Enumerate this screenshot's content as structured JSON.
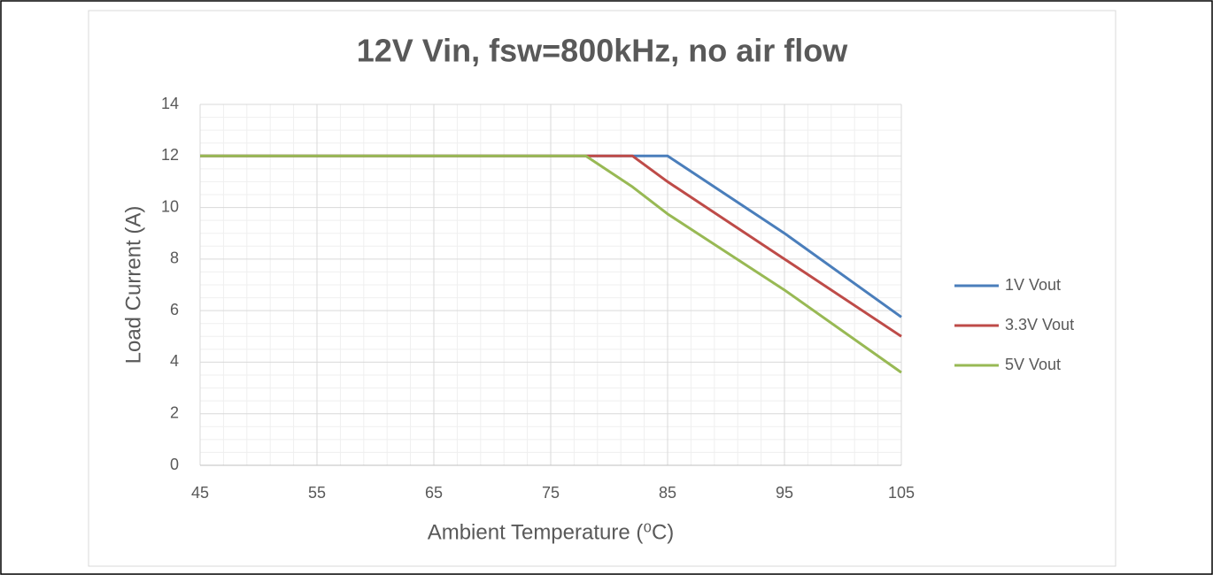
{
  "chart_data": {
    "type": "line",
    "title": "12V Vin, fsw=800kHz, no air flow",
    "x_label": "Ambient Temperature (⁰C)",
    "y_label": "Load Current (A)",
    "series": [
      {
        "name": "1V Vout",
        "color": "#4a7ebb",
        "x": [
          45,
          85,
          95,
          105
        ],
        "values": [
          12,
          12,
          9,
          5.75
        ]
      },
      {
        "name": "3.3V Vout",
        "color": "#be4b48",
        "x": [
          45,
          82,
          85,
          95,
          105
        ],
        "values": [
          12,
          12,
          11,
          8,
          5
        ]
      },
      {
        "name": "5V Vout",
        "color": "#98b954",
        "x": [
          45,
          78,
          82,
          85,
          95,
          105
        ],
        "values": [
          12,
          12,
          10.8,
          9.75,
          6.8,
          3.6
        ]
      }
    ],
    "xlim": [
      45,
      105
    ],
    "xticks": [
      45,
      55,
      65,
      75,
      85,
      95,
      105
    ],
    "ylim": [
      0,
      14
    ],
    "yticks": [
      0,
      2,
      4,
      6,
      8,
      10,
      12,
      14
    ],
    "grid": true,
    "minor_grid": true,
    "legend": "right"
  }
}
